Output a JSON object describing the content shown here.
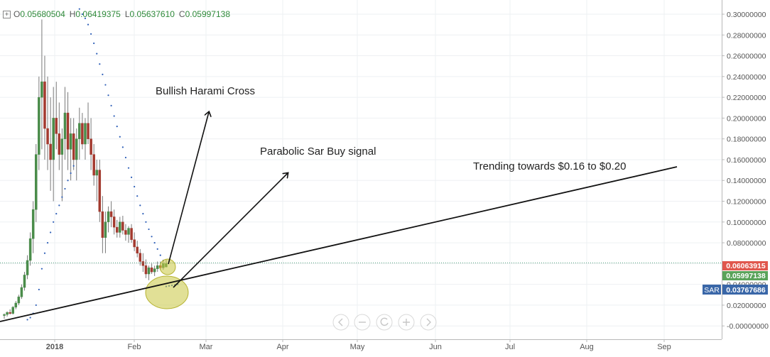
{
  "ohlc_legend": {
    "open_label": "O",
    "open": "0.05680504",
    "high_label": "H",
    "high": "0.06419375",
    "low_label": "L",
    "low": "0.05637610",
    "close_label": "C",
    "close": "0.05997138"
  },
  "price_axis_labels": [
    "0.30000000",
    "0.28000000",
    "0.26000000",
    "0.24000000",
    "0.22000000",
    "0.20000000",
    "0.18000000",
    "0.16000000",
    "0.14000000",
    "0.12000000",
    "0.10000000",
    "0.08000000",
    "0.06000000",
    "0.04000000",
    "0.02000000",
    "-0.00000000"
  ],
  "time_axis_labels": [
    "2018",
    "Feb",
    "Mar",
    "Apr",
    "May",
    "Jun",
    "Jul",
    "Aug",
    "Sep"
  ],
  "price_badges": {
    "last_price": "0.06063915",
    "close_price": "0.05997138",
    "sar_label": "SAR",
    "sar_value": "0.03767686"
  },
  "annotations": {
    "harami": "Bullish Harami Cross",
    "sar_signal": "Parabolic Sar Buy signal",
    "trend": "Trending towards $0.16 to $0.20"
  },
  "colors": {
    "bull": "#4a8c4a",
    "bear": "#a33a2f",
    "sar_dots": "#2e5fb8",
    "badge_red": "#e0574d",
    "badge_green": "#5aa35a",
    "badge_blue": "#3a67a8",
    "highlight": "#c8c640"
  },
  "toolbar_icons": [
    "chevron-left-icon",
    "minus-icon",
    "reset-icon",
    "plus-icon",
    "chevron-right-icon"
  ],
  "chart_data": {
    "type": "candlestick",
    "x_axis": "daily, Dec 2017 to Sep 2018",
    "y_range": [
      -0.004,
      0.31
    ],
    "grid": true,
    "candles": [
      {
        "o": 0.01,
        "h": 0.012,
        "l": 0.007,
        "c": 0.011
      },
      {
        "o": 0.011,
        "h": 0.014,
        "l": 0.009,
        "c": 0.013
      },
      {
        "o": 0.013,
        "h": 0.016,
        "l": 0.011,
        "c": 0.012
      },
      {
        "o": 0.012,
        "h": 0.019,
        "l": 0.011,
        "c": 0.018
      },
      {
        "o": 0.018,
        "h": 0.024,
        "l": 0.016,
        "c": 0.022
      },
      {
        "o": 0.022,
        "h": 0.03,
        "l": 0.02,
        "c": 0.028
      },
      {
        "o": 0.028,
        "h": 0.04,
        "l": 0.026,
        "c": 0.037
      },
      {
        "o": 0.037,
        "h": 0.052,
        "l": 0.034,
        "c": 0.049
      },
      {
        "o": 0.049,
        "h": 0.068,
        "l": 0.045,
        "c": 0.063
      },
      {
        "o": 0.063,
        "h": 0.09,
        "l": 0.058,
        "c": 0.084
      },
      {
        "o": 0.084,
        "h": 0.12,
        "l": 0.07,
        "c": 0.112
      },
      {
        "o": 0.112,
        "h": 0.175,
        "l": 0.1,
        "c": 0.165
      },
      {
        "o": 0.165,
        "h": 0.24,
        "l": 0.15,
        "c": 0.22
      },
      {
        "o": 0.22,
        "h": 0.295,
        "l": 0.17,
        "c": 0.235
      },
      {
        "o": 0.235,
        "h": 0.26,
        "l": 0.16,
        "c": 0.19
      },
      {
        "o": 0.19,
        "h": 0.24,
        "l": 0.15,
        "c": 0.175
      },
      {
        "o": 0.175,
        "h": 0.22,
        "l": 0.13,
        "c": 0.16
      },
      {
        "o": 0.16,
        "h": 0.23,
        "l": 0.12,
        "c": 0.2
      },
      {
        "o": 0.2,
        "h": 0.235,
        "l": 0.17,
        "c": 0.185
      },
      {
        "o": 0.185,
        "h": 0.215,
        "l": 0.15,
        "c": 0.165
      },
      {
        "o": 0.165,
        "h": 0.19,
        "l": 0.12,
        "c": 0.18
      },
      {
        "o": 0.18,
        "h": 0.23,
        "l": 0.16,
        "c": 0.205
      },
      {
        "o": 0.205,
        "h": 0.225,
        "l": 0.15,
        "c": 0.17
      },
      {
        "o": 0.17,
        "h": 0.2,
        "l": 0.14,
        "c": 0.185
      },
      {
        "o": 0.185,
        "h": 0.2,
        "l": 0.15,
        "c": 0.16
      },
      {
        "o": 0.16,
        "h": 0.19,
        "l": 0.14,
        "c": 0.18
      },
      {
        "o": 0.18,
        "h": 0.21,
        "l": 0.16,
        "c": 0.195
      },
      {
        "o": 0.195,
        "h": 0.205,
        "l": 0.17,
        "c": 0.175
      },
      {
        "o": 0.175,
        "h": 0.2,
        "l": 0.16,
        "c": 0.195
      },
      {
        "o": 0.195,
        "h": 0.215,
        "l": 0.175,
        "c": 0.18
      },
      {
        "o": 0.18,
        "h": 0.2,
        "l": 0.15,
        "c": 0.165
      },
      {
        "o": 0.165,
        "h": 0.175,
        "l": 0.135,
        "c": 0.145
      },
      {
        "o": 0.145,
        "h": 0.16,
        "l": 0.12,
        "c": 0.15
      },
      {
        "o": 0.15,
        "h": 0.16,
        "l": 0.1,
        "c": 0.11
      },
      {
        "o": 0.11,
        "h": 0.125,
        "l": 0.07,
        "c": 0.085
      },
      {
        "o": 0.085,
        "h": 0.11,
        "l": 0.07,
        "c": 0.1
      },
      {
        "o": 0.1,
        "h": 0.115,
        "l": 0.09,
        "c": 0.11
      },
      {
        "o": 0.11,
        "h": 0.12,
        "l": 0.095,
        "c": 0.105
      },
      {
        "o": 0.105,
        "h": 0.112,
        "l": 0.088,
        "c": 0.095
      },
      {
        "o": 0.095,
        "h": 0.102,
        "l": 0.085,
        "c": 0.09
      },
      {
        "o": 0.09,
        "h": 0.105,
        "l": 0.085,
        "c": 0.1
      },
      {
        "o": 0.1,
        "h": 0.106,
        "l": 0.088,
        "c": 0.092
      },
      {
        "o": 0.092,
        "h": 0.098,
        "l": 0.082,
        "c": 0.088
      },
      {
        "o": 0.088,
        "h": 0.096,
        "l": 0.08,
        "c": 0.094
      },
      {
        "o": 0.094,
        "h": 0.098,
        "l": 0.08,
        "c": 0.083
      },
      {
        "o": 0.083,
        "h": 0.09,
        "l": 0.072,
        "c": 0.076
      },
      {
        "o": 0.076,
        "h": 0.082,
        "l": 0.066,
        "c": 0.07
      },
      {
        "o": 0.07,
        "h": 0.074,
        "l": 0.058,
        "c": 0.062
      },
      {
        "o": 0.062,
        "h": 0.07,
        "l": 0.052,
        "c": 0.058
      },
      {
        "o": 0.058,
        "h": 0.064,
        "l": 0.046,
        "c": 0.05
      },
      {
        "o": 0.05,
        "h": 0.058,
        "l": 0.044,
        "c": 0.056
      },
      {
        "o": 0.056,
        "h": 0.06,
        "l": 0.05,
        "c": 0.052
      },
      {
        "o": 0.052,
        "h": 0.058,
        "l": 0.048,
        "c": 0.055
      },
      {
        "o": 0.055,
        "h": 0.062,
        "l": 0.052,
        "c": 0.058
      },
      {
        "o": 0.058,
        "h": 0.062,
        "l": 0.054,
        "c": 0.056
      },
      {
        "o": 0.056,
        "h": 0.063,
        "l": 0.054,
        "c": 0.06
      },
      {
        "o": 0.05680504,
        "h": 0.06419375,
        "l": 0.0563761,
        "c": 0.05997138
      }
    ],
    "sar": [
      {
        "i": 8,
        "v": 0.006
      },
      {
        "i": 9,
        "v": 0.008
      },
      {
        "i": 10,
        "v": 0.012
      },
      {
        "i": 11,
        "v": 0.02
      },
      {
        "i": 12,
        "v": 0.035
      },
      {
        "i": 13,
        "v": 0.055
      },
      {
        "i": 14,
        "v": 0.07
      },
      {
        "i": 15,
        "v": 0.08
      },
      {
        "i": 16,
        "v": 0.09
      },
      {
        "i": 17,
        "v": 0.1
      },
      {
        "i": 18,
        "v": 0.108
      },
      {
        "i": 19,
        "v": 0.116
      },
      {
        "i": 20,
        "v": 0.124
      },
      {
        "i": 21,
        "v": 0.132
      },
      {
        "i": 22,
        "v": 0.14
      },
      {
        "i": 23,
        "v": 0.147
      },
      {
        "i": 24,
        "v": 0.154
      },
      {
        "i": 26,
        "v": 0.305
      },
      {
        "i": 27,
        "v": 0.3
      },
      {
        "i": 28,
        "v": 0.296
      },
      {
        "i": 29,
        "v": 0.29
      },
      {
        "i": 30,
        "v": 0.281
      },
      {
        "i": 31,
        "v": 0.272
      },
      {
        "i": 32,
        "v": 0.262
      },
      {
        "i": 33,
        "v": 0.252
      },
      {
        "i": 34,
        "v": 0.242
      },
      {
        "i": 35,
        "v": 0.232
      },
      {
        "i": 36,
        "v": 0.222
      },
      {
        "i": 37,
        "v": 0.212
      },
      {
        "i": 38,
        "v": 0.202
      },
      {
        "i": 39,
        "v": 0.192
      },
      {
        "i": 40,
        "v": 0.182
      },
      {
        "i": 41,
        "v": 0.172
      },
      {
        "i": 42,
        "v": 0.162
      },
      {
        "i": 43,
        "v": 0.152
      },
      {
        "i": 44,
        "v": 0.143
      },
      {
        "i": 45,
        "v": 0.134
      },
      {
        "i": 46,
        "v": 0.125
      },
      {
        "i": 47,
        "v": 0.116
      },
      {
        "i": 48,
        "v": 0.108
      },
      {
        "i": 49,
        "v": 0.1
      },
      {
        "i": 50,
        "v": 0.093
      },
      {
        "i": 51,
        "v": 0.086
      },
      {
        "i": 52,
        "v": 0.08
      },
      {
        "i": 53,
        "v": 0.074
      },
      {
        "i": 54,
        "v": 0.068
      },
      {
        "i": 55,
        "v": 0.063
      },
      {
        "i": 56,
        "v": 0.038
      },
      {
        "i": 57,
        "v": 0.0385
      },
      {
        "i": 58,
        "v": 0.039
      },
      {
        "i": 59,
        "v": 0.0395
      },
      {
        "i": 60,
        "v": 0.04
      }
    ]
  }
}
